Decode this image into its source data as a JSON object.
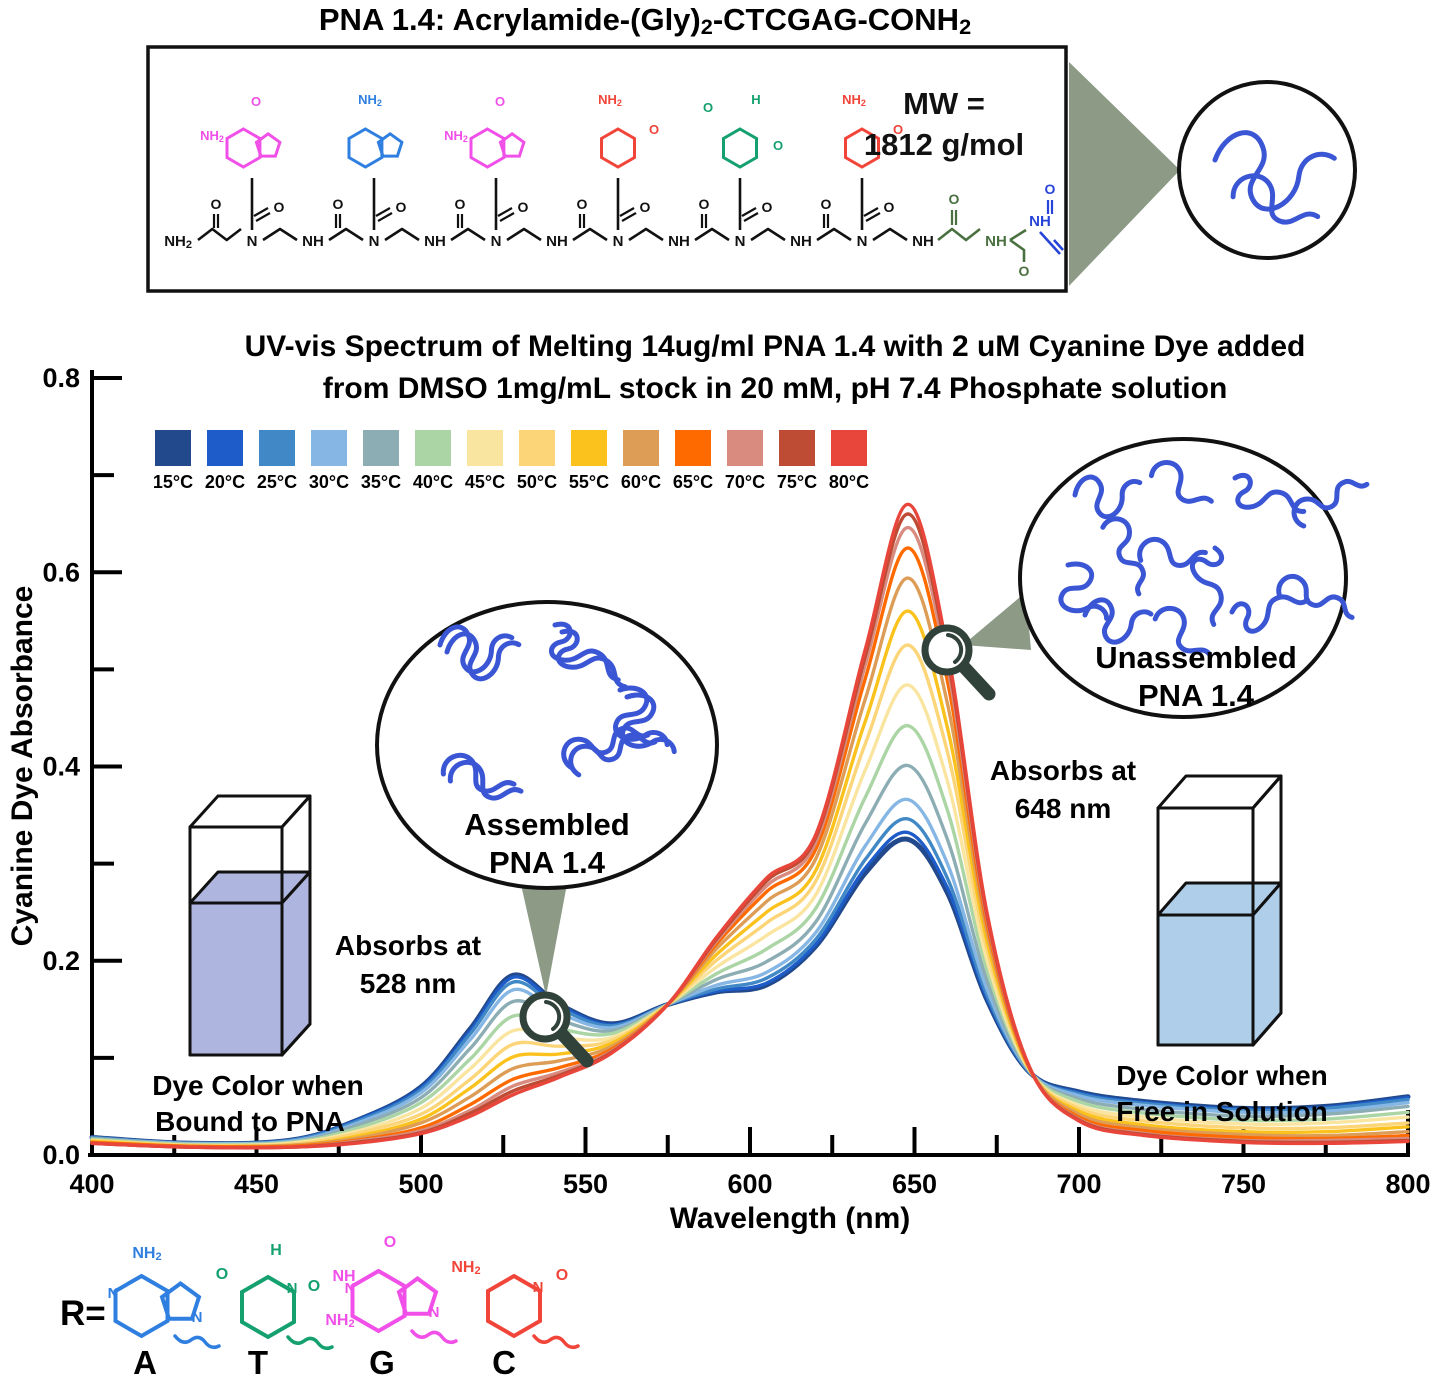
{
  "header": {
    "title_parts": [
      "PNA 1.4: Acrylamide-(Gly)",
      "2",
      "-CTCGAG-CONH",
      "2"
    ]
  },
  "structure_panel": {
    "mw_line1": "MW =",
    "mw_line2": "1812 g/mol",
    "residues": [
      {
        "base": "G"
      },
      {
        "base": "A"
      },
      {
        "base": "G"
      },
      {
        "base": "C"
      },
      {
        "base": "T"
      },
      {
        "base": "C"
      }
    ],
    "base_colors": {
      "A": "#2F7FE0",
      "T": "#14A06F",
      "G": "#F04FE8",
      "C": "#F2453A"
    },
    "labels": {
      "terminal_amine": "NH2",
      "backbone_n": "N",
      "backbone_nh": "NH",
      "oxygen": "O",
      "linker_nh": "NH"
    },
    "linker_colors": {
      "glycine": "#4A7040",
      "acrylamide": "#2744D8"
    }
  },
  "chart_data": {
    "type": "line",
    "title_line1": "UV-vis Spectrum of Melting 14ug/ml PNA 1.4 with 2 uM Cyanine Dye added",
    "title_line2": "from DMSO 1mg/mL stock in 20 mM, pH 7.4 Phosphate solution",
    "xlabel": "Wavelength (nm)",
    "ylabel": "Cyanine Dye Absorbance",
    "xlim": [
      400,
      800
    ],
    "ylim": [
      0,
      0.8
    ],
    "x_major_ticks": [
      400,
      450,
      500,
      550,
      600,
      650,
      700,
      750,
      800
    ],
    "x_minor_ticks": [
      425,
      475,
      525,
      575,
      625,
      675,
      725,
      775
    ],
    "y_major_ticks": [
      "0.0",
      "0.2",
      "0.4",
      "0.6",
      "0.8"
    ],
    "y_minor_ticks": [
      0.1,
      0.3,
      0.5,
      0.7
    ],
    "legend_position": "top-left",
    "grid": false,
    "wavelengths": [
      400,
      430,
      460,
      480,
      500,
      515,
      528,
      542,
      558,
      575,
      590,
      605,
      620,
      635,
      648,
      660,
      672,
      685,
      700,
      720,
      750,
      775,
      800
    ],
    "series": [
      {
        "name": "15°C",
        "color": "#21498B",
        "values": [
          0.018,
          0.012,
          0.015,
          0.035,
          0.07,
          0.13,
          0.185,
          0.155,
          0.135,
          0.155,
          0.168,
          0.175,
          0.215,
          0.29,
          0.325,
          0.27,
          0.16,
          0.085,
          0.065,
          0.055,
          0.048,
          0.05,
          0.06
        ]
      },
      {
        "name": "20°C",
        "color": "#1D5CC9",
        "values": [
          0.018,
          0.012,
          0.015,
          0.035,
          0.069,
          0.128,
          0.183,
          0.154,
          0.134,
          0.155,
          0.169,
          0.177,
          0.217,
          0.295,
          0.332,
          0.275,
          0.162,
          0.085,
          0.064,
          0.054,
          0.047,
          0.049,
          0.059
        ]
      },
      {
        "name": "25°C",
        "color": "#4189C6",
        "values": [
          0.018,
          0.012,
          0.015,
          0.034,
          0.067,
          0.125,
          0.178,
          0.151,
          0.133,
          0.155,
          0.171,
          0.182,
          0.222,
          0.304,
          0.346,
          0.285,
          0.165,
          0.085,
          0.063,
          0.053,
          0.046,
          0.048,
          0.057
        ]
      },
      {
        "name": "30°C",
        "color": "#86B6E4",
        "values": [
          0.017,
          0.012,
          0.014,
          0.032,
          0.064,
          0.119,
          0.17,
          0.146,
          0.131,
          0.155,
          0.175,
          0.188,
          0.229,
          0.318,
          0.366,
          0.3,
          0.171,
          0.086,
          0.061,
          0.051,
          0.044,
          0.045,
          0.054
        ]
      },
      {
        "name": "35°C",
        "color": "#8CADB3",
        "values": [
          0.017,
          0.011,
          0.013,
          0.03,
          0.059,
          0.11,
          0.158,
          0.139,
          0.128,
          0.155,
          0.181,
          0.199,
          0.24,
          0.341,
          0.401,
          0.325,
          0.18,
          0.086,
          0.058,
          0.047,
          0.04,
          0.042,
          0.05
        ]
      },
      {
        "name": "40°C",
        "color": "#ABD5A4",
        "values": [
          0.016,
          0.011,
          0.013,
          0.027,
          0.054,
          0.099,
          0.143,
          0.13,
          0.125,
          0.155,
          0.187,
          0.212,
          0.254,
          0.368,
          0.442,
          0.355,
          0.191,
          0.087,
          0.055,
          0.043,
          0.036,
          0.037,
          0.044
        ]
      },
      {
        "name": "45°C",
        "color": "#FAE5A0",
        "values": [
          0.015,
          0.01,
          0.012,
          0.024,
          0.048,
          0.089,
          0.128,
          0.121,
          0.121,
          0.155,
          0.194,
          0.226,
          0.268,
          0.396,
          0.484,
          0.385,
          0.201,
          0.087,
          0.051,
          0.039,
          0.032,
          0.033,
          0.039
        ]
      },
      {
        "name": "50°C",
        "color": "#FBD577",
        "values": [
          0.015,
          0.01,
          0.011,
          0.022,
          0.042,
          0.078,
          0.114,
          0.112,
          0.118,
          0.155,
          0.201,
          0.239,
          0.282,
          0.423,
          0.525,
          0.415,
          0.212,
          0.088,
          0.048,
          0.035,
          0.028,
          0.028,
          0.033
        ]
      },
      {
        "name": "55°C",
        "color": "#FBC21D",
        "values": [
          0.014,
          0.009,
          0.01,
          0.019,
          0.037,
          0.069,
          0.101,
          0.104,
          0.115,
          0.155,
          0.207,
          0.25,
          0.293,
          0.446,
          0.56,
          0.44,
          0.221,
          0.088,
          0.045,
          0.031,
          0.024,
          0.024,
          0.029
        ]
      },
      {
        "name": "60°C",
        "color": "#DD9D56",
        "values": [
          0.013,
          0.009,
          0.01,
          0.017,
          0.033,
          0.06,
          0.089,
          0.097,
          0.112,
          0.155,
          0.213,
          0.261,
          0.305,
          0.469,
          0.594,
          0.465,
          0.23,
          0.089,
          0.042,
          0.028,
          0.021,
          0.02,
          0.024
        ]
      },
      {
        "name": "65°C",
        "color": "#FE6A00",
        "values": [
          0.013,
          0.009,
          0.009,
          0.015,
          0.028,
          0.052,
          0.078,
          0.09,
          0.109,
          0.155,
          0.218,
          0.271,
          0.315,
          0.49,
          0.625,
          0.488,
          0.238,
          0.089,
          0.039,
          0.025,
          0.018,
          0.017,
          0.02
        ]
      },
      {
        "name": "70°C",
        "color": "#D98B80",
        "values": [
          0.012,
          0.008,
          0.008,
          0.014,
          0.025,
          0.046,
          0.071,
          0.085,
          0.107,
          0.155,
          0.221,
          0.277,
          0.322,
          0.504,
          0.646,
          0.503,
          0.244,
          0.09,
          0.037,
          0.022,
          0.015,
          0.015,
          0.017
        ]
      },
      {
        "name": "75°C",
        "color": "#BE4B33",
        "values": [
          0.012,
          0.008,
          0.008,
          0.013,
          0.023,
          0.043,
          0.066,
          0.082,
          0.106,
          0.155,
          0.223,
          0.282,
          0.327,
          0.513,
          0.66,
          0.513,
          0.247,
          0.09,
          0.036,
          0.021,
          0.014,
          0.013,
          0.015
        ]
      },
      {
        "name": "80°C",
        "color": "#E8463B",
        "values": [
          0.012,
          0.008,
          0.008,
          0.012,
          0.022,
          0.04,
          0.062,
          0.08,
          0.105,
          0.155,
          0.225,
          0.285,
          0.33,
          0.52,
          0.67,
          0.52,
          0.25,
          0.09,
          0.035,
          0.02,
          0.013,
          0.012,
          0.014
        ]
      }
    ]
  },
  "annotations": {
    "absorbs_left_1": "Absorbs at",
    "absorbs_left_2": "528 nm",
    "absorbs_right_1": "Absorbs at",
    "absorbs_right_2": "648 nm",
    "cuvette_left_1": "Dye Color when",
    "cuvette_left_2": "Bound to PNA",
    "cuvette_right_1": "Dye Color when",
    "cuvette_right_2": "Free in Solution",
    "assembled_1": "Assembled",
    "assembled_2": "PNA 1.4",
    "unassembled_1": "Unassembled",
    "unassembled_2": "PNA 1.4"
  },
  "cuvettes": {
    "bound_fill": "#AEB5DF",
    "free_fill": "#AFCEE9"
  },
  "art_colors": {
    "wedge": "#8C9A86",
    "magnifier": "#31423B",
    "strand_blue": "#3A56D4"
  },
  "base_legend": {
    "prefix": "R=",
    "bases": [
      {
        "letter": "A",
        "type": "purine",
        "color": "#2F7FE0",
        "substituents": [
          "NH2"
        ]
      },
      {
        "letter": "T",
        "type": "pyrimidine",
        "color": "#14A06F",
        "substituents": [
          "H",
          "O",
          "O"
        ]
      },
      {
        "letter": "G",
        "type": "purine",
        "color": "#F04FE8",
        "substituents": [
          "O",
          "NH",
          "NH2"
        ]
      },
      {
        "letter": "C",
        "type": "pyrimidine",
        "color": "#F2453A",
        "substituents": [
          "NH2",
          "O"
        ]
      }
    ]
  }
}
